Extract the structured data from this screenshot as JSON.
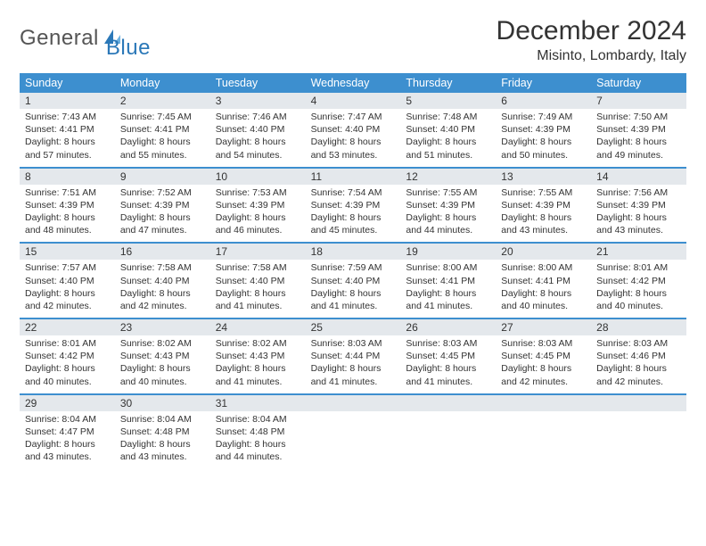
{
  "brand": {
    "word1": "General",
    "word2": "Blue",
    "logo_color": "#2b78b8",
    "text_color": "#555555"
  },
  "header": {
    "title": "December 2024",
    "location": "Misinto, Lombardy, Italy"
  },
  "colors": {
    "header_bg": "#3d8fcf",
    "header_text": "#ffffff",
    "daynum_bg": "#e4e8ec",
    "week_border": "#3d8fcf",
    "body_text": "#333333"
  },
  "dayNames": [
    "Sunday",
    "Monday",
    "Tuesday",
    "Wednesday",
    "Thursday",
    "Friday",
    "Saturday"
  ],
  "labels": {
    "sunrise": "Sunrise:",
    "sunset": "Sunset:",
    "daylight": "Daylight:"
  },
  "weeks": [
    [
      {
        "day": 1,
        "sunrise": "7:43 AM",
        "sunset": "4:41 PM",
        "dl": "8 hours and 57 minutes."
      },
      {
        "day": 2,
        "sunrise": "7:45 AM",
        "sunset": "4:41 PM",
        "dl": "8 hours and 55 minutes."
      },
      {
        "day": 3,
        "sunrise": "7:46 AM",
        "sunset": "4:40 PM",
        "dl": "8 hours and 54 minutes."
      },
      {
        "day": 4,
        "sunrise": "7:47 AM",
        "sunset": "4:40 PM",
        "dl": "8 hours and 53 minutes."
      },
      {
        "day": 5,
        "sunrise": "7:48 AM",
        "sunset": "4:40 PM",
        "dl": "8 hours and 51 minutes."
      },
      {
        "day": 6,
        "sunrise": "7:49 AM",
        "sunset": "4:39 PM",
        "dl": "8 hours and 50 minutes."
      },
      {
        "day": 7,
        "sunrise": "7:50 AM",
        "sunset": "4:39 PM",
        "dl": "8 hours and 49 minutes."
      }
    ],
    [
      {
        "day": 8,
        "sunrise": "7:51 AM",
        "sunset": "4:39 PM",
        "dl": "8 hours and 48 minutes."
      },
      {
        "day": 9,
        "sunrise": "7:52 AM",
        "sunset": "4:39 PM",
        "dl": "8 hours and 47 minutes."
      },
      {
        "day": 10,
        "sunrise": "7:53 AM",
        "sunset": "4:39 PM",
        "dl": "8 hours and 46 minutes."
      },
      {
        "day": 11,
        "sunrise": "7:54 AM",
        "sunset": "4:39 PM",
        "dl": "8 hours and 45 minutes."
      },
      {
        "day": 12,
        "sunrise": "7:55 AM",
        "sunset": "4:39 PM",
        "dl": "8 hours and 44 minutes."
      },
      {
        "day": 13,
        "sunrise": "7:55 AM",
        "sunset": "4:39 PM",
        "dl": "8 hours and 43 minutes."
      },
      {
        "day": 14,
        "sunrise": "7:56 AM",
        "sunset": "4:39 PM",
        "dl": "8 hours and 43 minutes."
      }
    ],
    [
      {
        "day": 15,
        "sunrise": "7:57 AM",
        "sunset": "4:40 PM",
        "dl": "8 hours and 42 minutes."
      },
      {
        "day": 16,
        "sunrise": "7:58 AM",
        "sunset": "4:40 PM",
        "dl": "8 hours and 42 minutes."
      },
      {
        "day": 17,
        "sunrise": "7:58 AM",
        "sunset": "4:40 PM",
        "dl": "8 hours and 41 minutes."
      },
      {
        "day": 18,
        "sunrise": "7:59 AM",
        "sunset": "4:40 PM",
        "dl": "8 hours and 41 minutes."
      },
      {
        "day": 19,
        "sunrise": "8:00 AM",
        "sunset": "4:41 PM",
        "dl": "8 hours and 41 minutes."
      },
      {
        "day": 20,
        "sunrise": "8:00 AM",
        "sunset": "4:41 PM",
        "dl": "8 hours and 40 minutes."
      },
      {
        "day": 21,
        "sunrise": "8:01 AM",
        "sunset": "4:42 PM",
        "dl": "8 hours and 40 minutes."
      }
    ],
    [
      {
        "day": 22,
        "sunrise": "8:01 AM",
        "sunset": "4:42 PM",
        "dl": "8 hours and 40 minutes."
      },
      {
        "day": 23,
        "sunrise": "8:02 AM",
        "sunset": "4:43 PM",
        "dl": "8 hours and 40 minutes."
      },
      {
        "day": 24,
        "sunrise": "8:02 AM",
        "sunset": "4:43 PM",
        "dl": "8 hours and 41 minutes."
      },
      {
        "day": 25,
        "sunrise": "8:03 AM",
        "sunset": "4:44 PM",
        "dl": "8 hours and 41 minutes."
      },
      {
        "day": 26,
        "sunrise": "8:03 AM",
        "sunset": "4:45 PM",
        "dl": "8 hours and 41 minutes."
      },
      {
        "day": 27,
        "sunrise": "8:03 AM",
        "sunset": "4:45 PM",
        "dl": "8 hours and 42 minutes."
      },
      {
        "day": 28,
        "sunrise": "8:03 AM",
        "sunset": "4:46 PM",
        "dl": "8 hours and 42 minutes."
      }
    ],
    [
      {
        "day": 29,
        "sunrise": "8:04 AM",
        "sunset": "4:47 PM",
        "dl": "8 hours and 43 minutes."
      },
      {
        "day": 30,
        "sunrise": "8:04 AM",
        "sunset": "4:48 PM",
        "dl": "8 hours and 43 minutes."
      },
      {
        "day": 31,
        "sunrise": "8:04 AM",
        "sunset": "4:48 PM",
        "dl": "8 hours and 44 minutes."
      },
      null,
      null,
      null,
      null
    ]
  ]
}
